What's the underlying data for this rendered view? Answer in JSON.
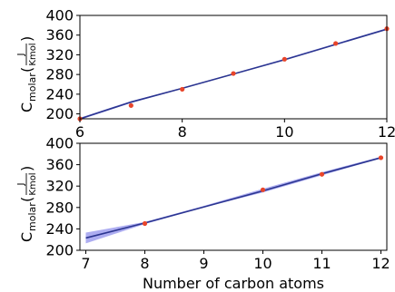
{
  "chart_data": [
    {
      "type": "line",
      "panel": "top",
      "xlabel": "",
      "ylabel_prefix": "C",
      "ylabel_sub": "molar",
      "ylabel_num": "J",
      "ylabel_den": "Kmol",
      "xlim": [
        6,
        12
      ],
      "ylim": [
        190,
        400
      ],
      "xticks": [
        6,
        8,
        10,
        12
      ],
      "yticks": [
        200,
        240,
        280,
        320,
        360,
        400
      ],
      "points": {
        "x": [
          6,
          7,
          8,
          9,
          10,
          11,
          12
        ],
        "y": [
          190,
          217,
          250,
          282,
          311,
          343,
          373
        ]
      },
      "fit": {
        "x": [
          6,
          7,
          8,
          9,
          10,
          11,
          12
        ],
        "y": [
          190,
          224,
          252,
          281,
          310,
          341,
          372
        ]
      },
      "band": {
        "x": [
          6,
          7,
          8,
          9,
          10,
          11,
          12
        ],
        "lower": [
          188,
          222,
          251,
          280,
          309,
          340,
          371
        ],
        "upper": [
          192,
          226,
          253,
          282,
          312,
          343,
          374
        ]
      },
      "colors": {
        "points": "#e8452a",
        "line": "#2b3590",
        "band": "#6a6ae6"
      }
    },
    {
      "type": "line",
      "panel": "bottom",
      "xlabel": "Number of carbon atoms",
      "ylabel_prefix": "C",
      "ylabel_sub": "molar",
      "ylabel_num": "J",
      "ylabel_den": "Kmol",
      "xlim": [
        6.9,
        12.1
      ],
      "ylim": [
        200,
        400
      ],
      "xticks": [
        7,
        8,
        9,
        10,
        11,
        12
      ],
      "yticks": [
        200,
        240,
        280,
        320,
        360,
        400
      ],
      "points": {
        "x": [
          8,
          10,
          11,
          12
        ],
        "y": [
          250,
          313,
          342,
          373
        ]
      },
      "fit": {
        "x": [
          7,
          8,
          9,
          10,
          11,
          12
        ],
        "y": [
          223,
          251,
          281,
          311,
          343,
          373
        ]
      },
      "band": {
        "x": [
          7,
          8,
          9,
          10,
          11,
          12
        ],
        "lower": [
          213,
          249,
          280,
          308,
          340,
          372
        ],
        "upper": [
          233,
          253,
          283,
          315,
          346,
          375
        ]
      },
      "colors": {
        "points": "#e8452a",
        "line": "#2b3590",
        "band": "#6a6ae6"
      }
    }
  ]
}
